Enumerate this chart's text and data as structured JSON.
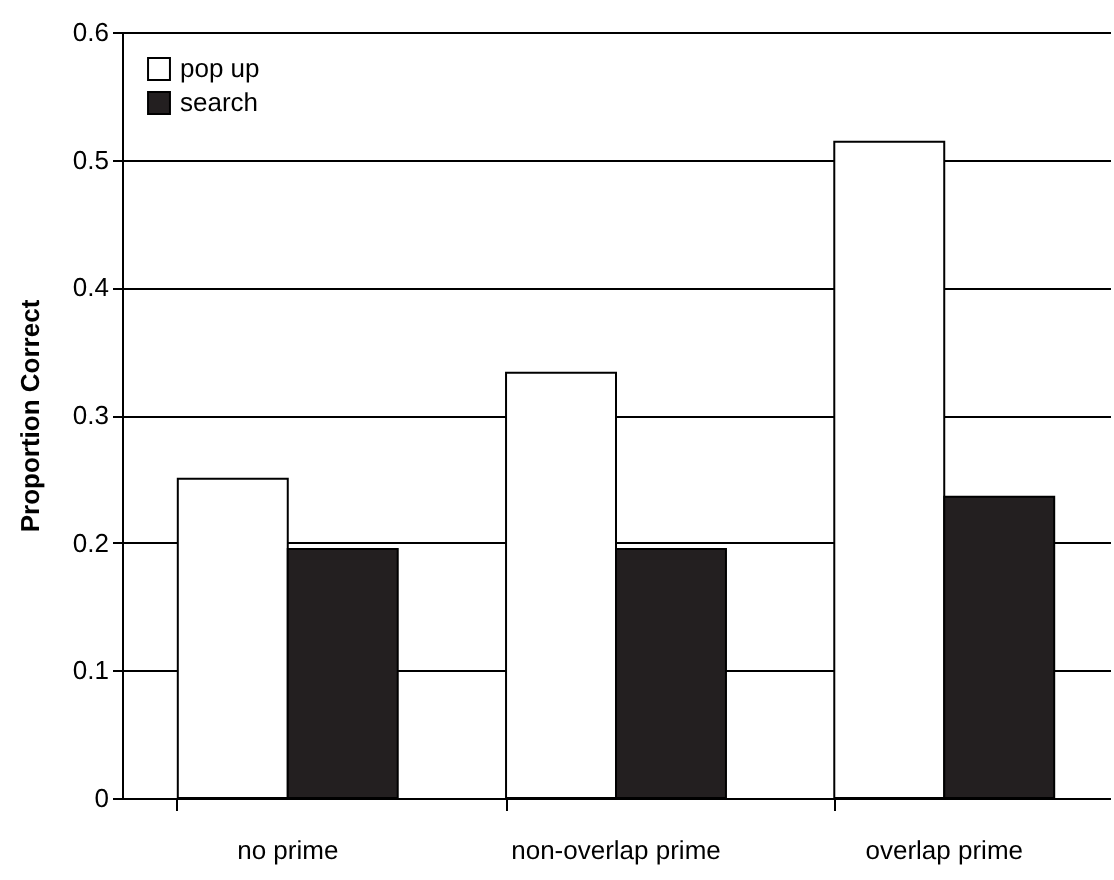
{
  "chart_data": {
    "type": "bar",
    "ylabel": "Proportion Correct",
    "categories": [
      "no prime",
      "non-overlap prime",
      "overlap prime"
    ],
    "series": [
      {
        "name": "pop up",
        "color": "#ffffff",
        "values": [
          0.25,
          0.333,
          0.514
        ]
      },
      {
        "name": "search",
        "color": "#231f20",
        "values": [
          0.195,
          0.195,
          0.236
        ]
      }
    ],
    "ylim": [
      0,
      0.6
    ],
    "yticks": [
      0,
      0.1,
      0.2,
      0.3,
      0.4,
      0.5,
      0.6
    ],
    "grid": "y",
    "legend": "top left"
  }
}
